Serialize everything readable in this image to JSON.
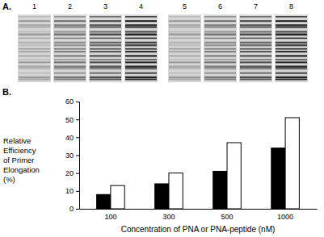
{
  "panels": {
    "a": {
      "label": "A.",
      "lanes": [
        "1",
        "2",
        "3",
        "4",
        "5",
        "6",
        "7",
        "8"
      ]
    },
    "b": {
      "label": "B."
    }
  },
  "chart_data": {
    "type": "bar",
    "categories": [
      "100",
      "300",
      "500",
      "1000"
    ],
    "series": [
      {
        "color": "#000000",
        "values": [
          8,
          14,
          21,
          34
        ]
      },
      {
        "color": "#ffffff",
        "values": [
          13,
          20,
          37,
          51
        ]
      }
    ],
    "xlabel": "Concentration of PNA or PNA-peptide (nM)",
    "ylabel": [
      "Relative",
      "Efficiency",
      "of Primer",
      "Elongation",
      "(%)"
    ],
    "ylim": [
      0,
      60
    ],
    "yticks": [
      0,
      10,
      20,
      30,
      40,
      50,
      60
    ],
    "grid": false
  }
}
